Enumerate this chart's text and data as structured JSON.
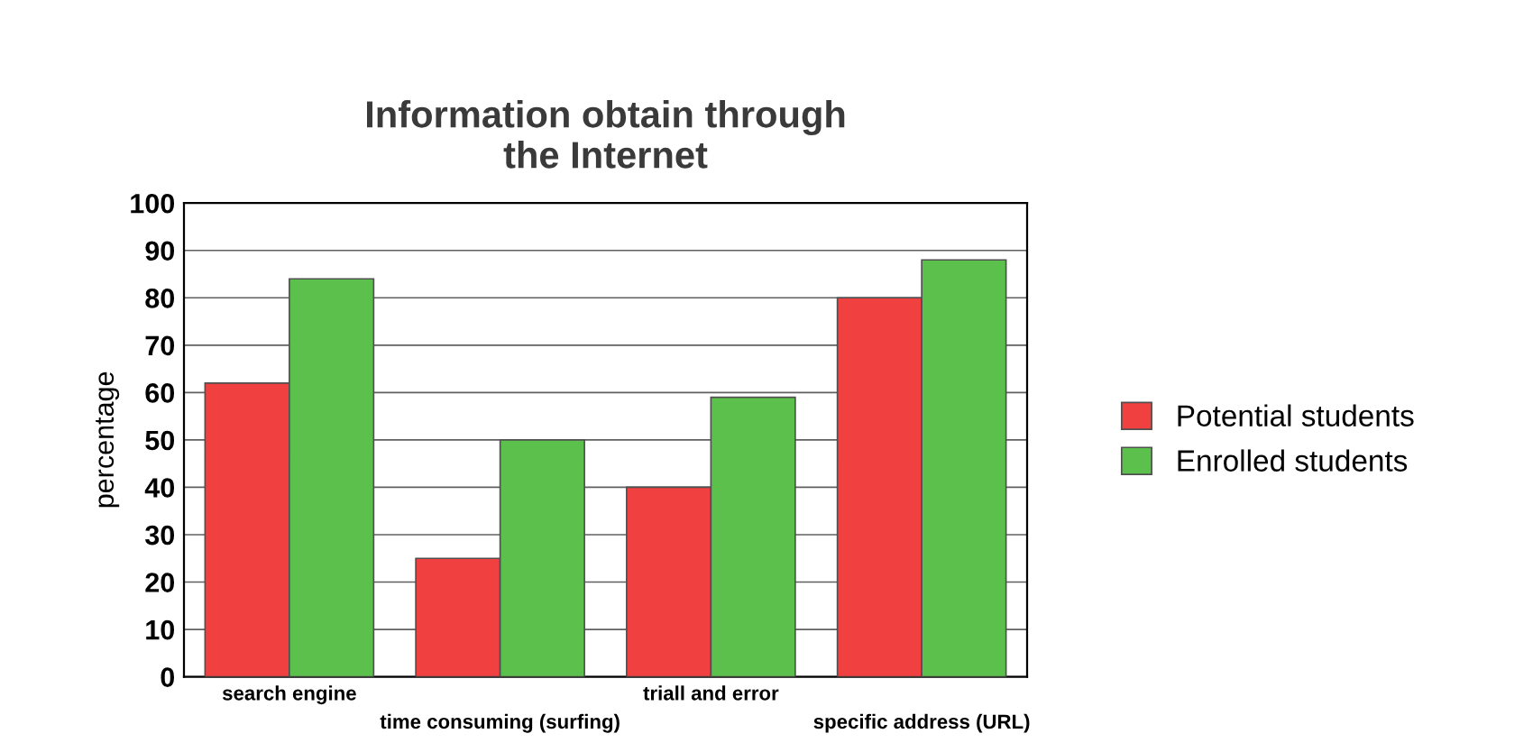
{
  "chart_data": {
    "type": "bar",
    "title": "Information obtain through\nthe Internet",
    "ylabel": "percentage",
    "categories": [
      "search engine",
      "time consuming (surfing)",
      "triall and error",
      "specific address (URL)"
    ],
    "series": [
      {
        "name": "Potential students",
        "color": "#f04040",
        "values": [
          62,
          25,
          40,
          80
        ]
      },
      {
        "name": "Enrolled students",
        "color": "#5cc04c",
        "values": [
          84,
          50,
          59,
          88
        ]
      }
    ],
    "ylim": [
      0,
      100
    ],
    "yticks": [
      0,
      10,
      20,
      30,
      40,
      50,
      60,
      70,
      80,
      90,
      100
    ],
    "grid": "y",
    "legend": "right"
  }
}
